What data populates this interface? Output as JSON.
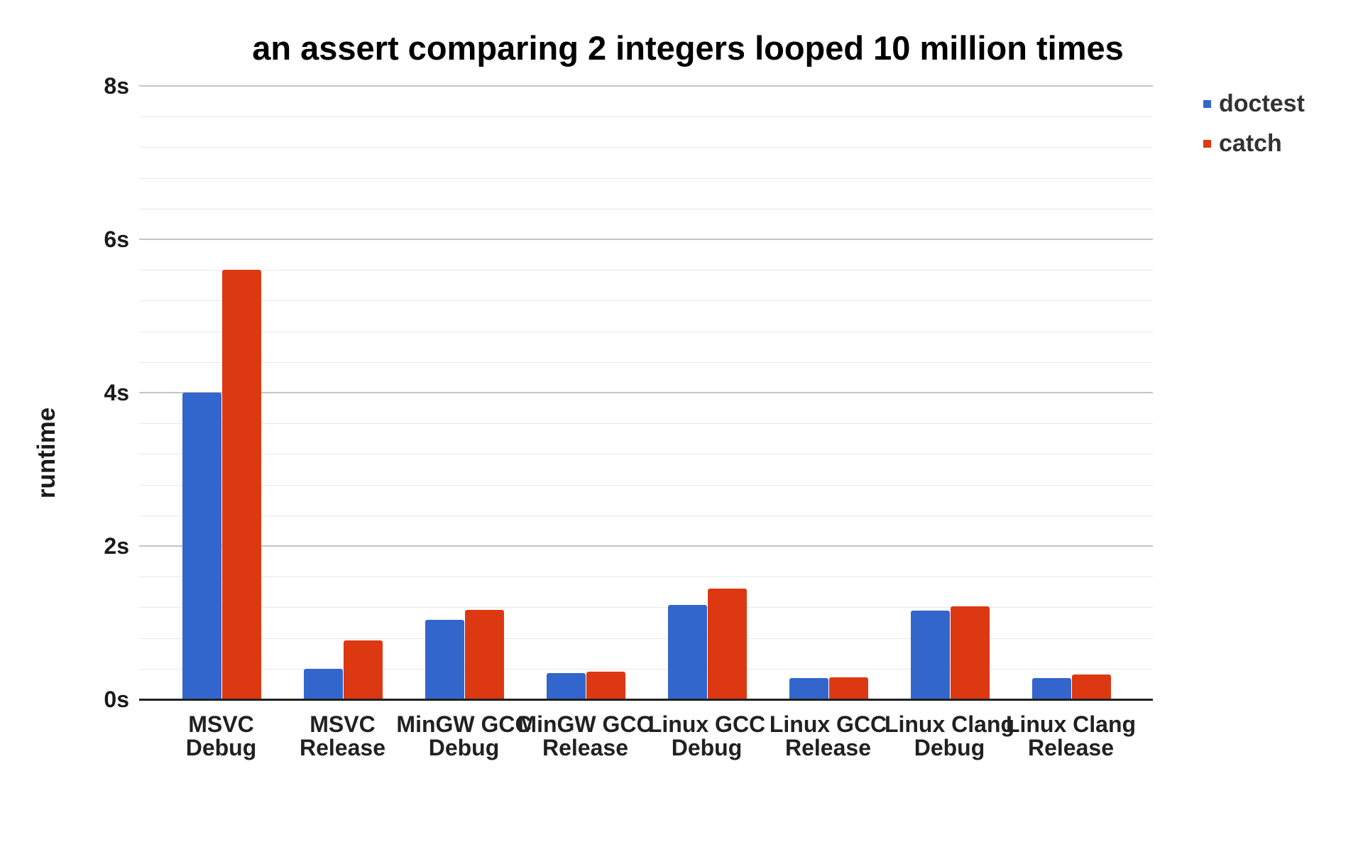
{
  "page": {
    "background": "#ffffff"
  },
  "chart_data": {
    "type": "bar",
    "title": "an assert comparing 2 integers looped 10 million times",
    "ylabel": "runtime",
    "xlabel": "",
    "ylim": [
      0,
      8
    ],
    "grid": true,
    "minor_gridline_step": 0.4,
    "legend_position": "top-right",
    "yticks": [
      {
        "value": 0,
        "label": "0s"
      },
      {
        "value": 2,
        "label": "2s"
      },
      {
        "value": 4,
        "label": "4s"
      },
      {
        "value": 6,
        "label": "6s"
      },
      {
        "value": 8,
        "label": "8s"
      }
    ],
    "categories": [
      "MSVC Debug",
      "MSVC Release",
      "MinGW GCC Debug",
      "MinGW GCC Release",
      "Linux GCC Debug",
      "Linux GCC Release",
      "Linux Clang Debug",
      "Linux Clang Release"
    ],
    "category_lines": [
      [
        "MSVC",
        "Debug"
      ],
      [
        "MSVC",
        "Release"
      ],
      [
        "MinGW GCC",
        "Debug"
      ],
      [
        "MinGW GCC",
        "Release"
      ],
      [
        "Linux GCC",
        "Debug"
      ],
      [
        "Linux GCC",
        "Release"
      ],
      [
        "Linux Clang",
        "Debug"
      ],
      [
        "Linux Clang",
        "Release"
      ]
    ],
    "series": [
      {
        "name": "doctest",
        "color": "#3366CC",
        "values": [
          4.0,
          0.4,
          1.04,
          0.34,
          1.23,
          0.28,
          1.16,
          0.28
        ]
      },
      {
        "name": "catch",
        "color": "#DC3912",
        "values": [
          5.6,
          0.77,
          1.17,
          0.36,
          1.44,
          0.29,
          1.21,
          0.32
        ]
      }
    ]
  }
}
